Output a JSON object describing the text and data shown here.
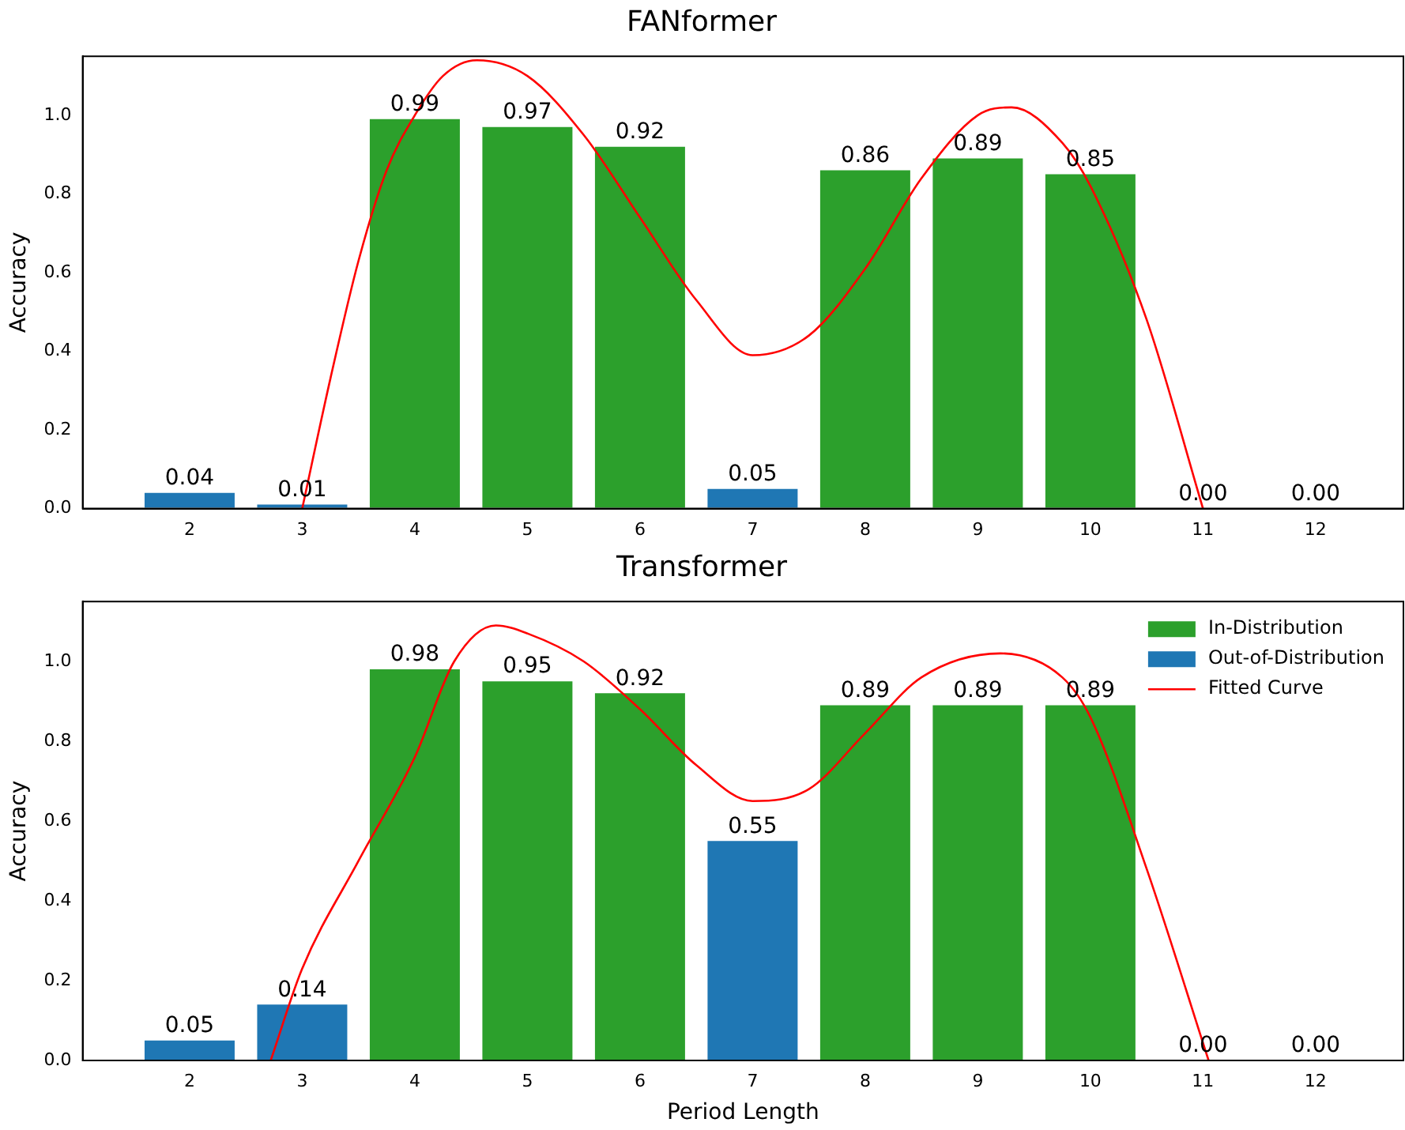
{
  "chart_data": [
    {
      "type": "bar",
      "title": "FANformer",
      "ylabel": "Accuracy",
      "x": [
        2,
        3,
        4,
        5,
        6,
        7,
        8,
        9,
        10,
        11,
        12
      ],
      "xlim": [
        1.05,
        12.78
      ],
      "xticks": [
        2,
        3,
        4,
        5,
        6,
        7,
        8,
        9,
        10,
        11,
        12
      ],
      "ylim": [
        0,
        1.15
      ],
      "yticks": [
        {
          "value": 0,
          "label": "0.0"
        },
        {
          "value": 0.2,
          "label": "0.2"
        },
        {
          "value": 0.4,
          "label": "0.4"
        },
        {
          "value": 0.6,
          "label": "0.6"
        },
        {
          "value": 0.8,
          "label": "0.8"
        },
        {
          "value": 1,
          "label": "1.0"
        }
      ],
      "grid": false,
      "legend": false,
      "series": [
        {
          "color": "#2ca02c",
          "values": [
            null,
            null,
            0.99,
            0.97,
            0.92,
            null,
            0.86,
            0.89,
            0.85,
            null,
            null
          ],
          "value_labels": [
            null,
            null,
            "0.99",
            "0.97",
            "0.92",
            null,
            "0.86",
            "0.89",
            "0.85",
            null,
            null
          ]
        },
        {
          "color": "#1f77b4",
          "values": [
            0.04,
            0.01,
            null,
            null,
            null,
            0.05,
            null,
            null,
            null,
            0,
            0
          ],
          "value_labels": [
            "0.04",
            "0.01",
            null,
            null,
            null,
            "0.05",
            null,
            null,
            null,
            "0.00",
            "0.00"
          ]
        },
        {
          "type": "line",
          "color": "#ff0000",
          "x": [
            3,
            3.25,
            3.5,
            3.75,
            4,
            4.25,
            4.55,
            5,
            5.5,
            6,
            6.5,
            7,
            7.5,
            8,
            8.5,
            9,
            9.3,
            9.75,
            10,
            10.5,
            11
          ],
          "values": [
            0,
            0.33,
            0.63,
            0.86,
            1.0,
            1.1,
            1.14,
            1.1,
            0.95,
            0.74,
            0.53,
            0.39,
            0.44,
            0.61,
            0.84,
            1.0,
            1.02,
            0.93,
            0.82,
            0.48,
            0
          ]
        }
      ]
    },
    {
      "type": "bar",
      "title": "Transformer",
      "xlabel": "Period Length",
      "ylabel": "Accuracy",
      "x": [
        2,
        3,
        4,
        5,
        6,
        7,
        8,
        9,
        10,
        11,
        12
      ],
      "xlim": [
        1.05,
        12.78
      ],
      "xticks": [
        2,
        3,
        4,
        5,
        6,
        7,
        8,
        9,
        10,
        11,
        12
      ],
      "ylim": [
        0,
        1.15
      ],
      "yticks": [
        {
          "value": 0,
          "label": "0.0"
        },
        {
          "value": 0.2,
          "label": "0.2"
        },
        {
          "value": 0.4,
          "label": "0.4"
        },
        {
          "value": 0.6,
          "label": "0.6"
        },
        {
          "value": 0.8,
          "label": "0.8"
        },
        {
          "value": 1,
          "label": "1.0"
        }
      ],
      "grid": false,
      "legend": "top right",
      "series": [
        {
          "name": "In-Distribution",
          "color": "#2ca02c",
          "values": [
            null,
            null,
            0.98,
            0.95,
            0.92,
            null,
            0.89,
            0.89,
            0.89,
            null,
            null
          ],
          "value_labels": [
            null,
            null,
            "0.98",
            "0.95",
            "0.92",
            null,
            "0.89",
            "0.89",
            "0.89",
            null,
            null
          ]
        },
        {
          "name": "Out-of-Distribution",
          "color": "#1f77b4",
          "values": [
            0.05,
            0.14,
            null,
            null,
            null,
            0.55,
            null,
            null,
            null,
            0,
            0
          ],
          "value_labels": [
            "0.05",
            "0.14",
            null,
            null,
            null,
            "0.55",
            null,
            null,
            null,
            "0.00",
            "0.00"
          ]
        },
        {
          "type": "line",
          "name": "Fitted Curve",
          "color": "#ff0000",
          "x": [
            2.72,
            3,
            3.5,
            4,
            4.35,
            4.72,
            5,
            5.5,
            6,
            6.5,
            7,
            7.5,
            8,
            8.5,
            9.2,
            9.75,
            10,
            10.5,
            11.05
          ],
          "values": [
            0,
            0.23,
            0.5,
            0.76,
            1.0,
            1.09,
            1.07,
            1.0,
            0.88,
            0.74,
            0.65,
            0.68,
            0.82,
            0.96,
            1.02,
            0.96,
            0.86,
            0.48,
            0
          ]
        }
      ]
    }
  ]
}
